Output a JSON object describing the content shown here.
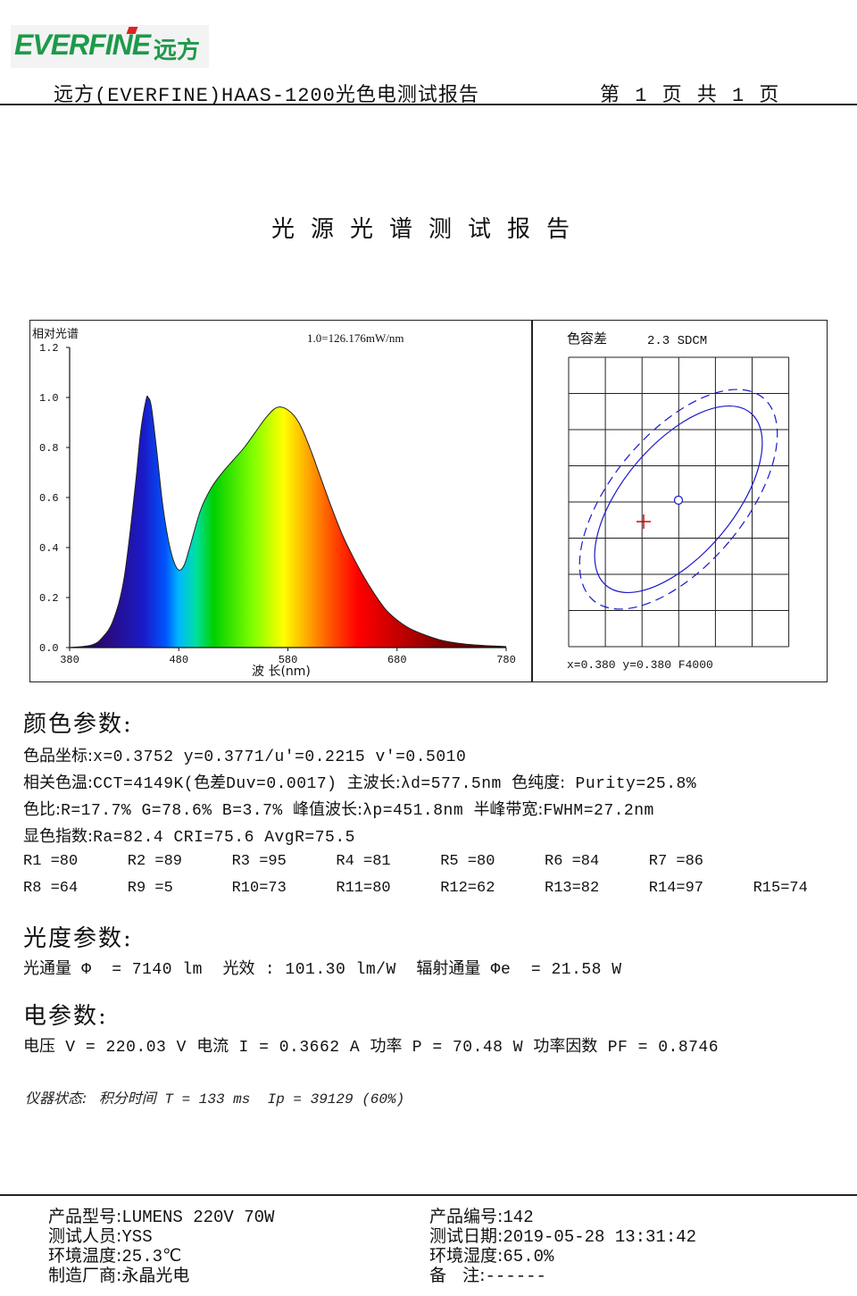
{
  "header": {
    "logo_en": "EVERFINE",
    "logo_cn": "远方",
    "report_title": "远方(EVERFINE)HAAS-1200光色电测试报告",
    "page_indicator": "第 1 页   共 1 页"
  },
  "main_title": "光源光谱测试报告",
  "spectrum": {
    "ylabel": "相对光谱",
    "scale_note": "1.0=126.176mW/nm",
    "xlabel": "波 长(nm)",
    "yticks": [
      "1.2",
      "1.0",
      "0.8",
      "0.6",
      "0.4",
      "0.2",
      "0.0"
    ],
    "xticks": [
      "380",
      "480",
      "580",
      "680",
      "780"
    ]
  },
  "chart_data": {
    "type": "area",
    "title": "",
    "xlabel": "波 长(nm)",
    "ylabel": "相对光谱",
    "xlim": [
      380,
      780
    ],
    "ylim": [
      0,
      1.2
    ],
    "x": [
      380,
      400,
      410,
      420,
      430,
      440,
      445,
      450,
      452,
      455,
      460,
      465,
      470,
      475,
      480,
      485,
      490,
      500,
      510,
      520,
      530,
      540,
      550,
      560,
      570,
      580,
      590,
      600,
      610,
      620,
      630,
      640,
      650,
      660,
      670,
      680,
      690,
      700,
      720,
      740,
      760,
      780
    ],
    "y": [
      0.0,
      0.01,
      0.04,
      0.11,
      0.28,
      0.64,
      0.86,
      0.99,
      1.0,
      0.96,
      0.78,
      0.58,
      0.44,
      0.35,
      0.31,
      0.33,
      0.4,
      0.55,
      0.64,
      0.7,
      0.75,
      0.8,
      0.86,
      0.92,
      0.96,
      0.95,
      0.9,
      0.8,
      0.68,
      0.56,
      0.45,
      0.36,
      0.28,
      0.21,
      0.15,
      0.11,
      0.08,
      0.06,
      0.03,
      0.015,
      0.008,
      0.004
    ]
  },
  "color_tolerance": {
    "label": "色容差",
    "value": "2.3 SDCM",
    "coords": "x=0.380 y=0.380 F4000"
  },
  "color_params": {
    "heading": "颜色参数:",
    "line1_label": "色品坐标:",
    "line1_value": "x=0.3752  y=0.3771/u'=0.2215 v'=0.5010",
    "line2_label_a": "相关色温:",
    "line2_value_a": "CCT=4149K(",
    "line2_label_b": "色差",
    "line2_value_b": "Duv=0.0017) ",
    "line2_label_c": "主波长:",
    "line2_value_c": "λd=577.5nm ",
    "line2_label_d": "色纯度:",
    "line2_value_d": " Purity=25.8%",
    "line3_label_a": "色比:",
    "line3_value_a": "R=17.7% G=78.6% B=3.7%  ",
    "line3_label_b": "峰值波长:",
    "line3_value_b": "λp=451.8nm  ",
    "line3_label_c": "半峰带宽:",
    "line3_value_c": "FWHM=27.2nm",
    "line4_label": "显色指数:",
    "line4_value": "Ra=82.4   CRI=75.6   AvgR=75.5",
    "r_values": [
      "R1 =80",
      "R2 =89",
      "R3 =95",
      "R4 =81",
      "R5 =80",
      "R6 =84",
      "R7 =86",
      "R8 =64",
      "R9 =5",
      "R10=73",
      "R11=80",
      "R12=62",
      "R13=82",
      "R14=97",
      "R15=74"
    ]
  },
  "photo_params": {
    "heading": "光度参数:",
    "flux_label": "光通量",
    "flux_value": " Φ  = 7140 lm  ",
    "eff_label": "光效",
    "eff_value": " : 101.30 lm/W  ",
    "rad_label": "辐射通量",
    "rad_value": " Φe  = 21.58 W"
  },
  "elec_params": {
    "heading": "电参数:",
    "v_label": "电压",
    "v_value": " V = 220.03 V ",
    "i_label": "电流",
    "i_value": " I = 0.3662 A ",
    "p_label": "功率",
    "p_value": " P = 70.48 W ",
    "pf_label": "功率因数",
    "pf_value": " PF = 0.8746"
  },
  "instrument": {
    "label": "仪器状态:",
    "int_label": "积分时间",
    "int_value": " T = 133 ms  Ip = 39129 (60%)"
  },
  "footer": {
    "model_label": "产品型号:",
    "model_value": "LUMENS 220V 70W",
    "tester_label": "测试人员:",
    "tester_value": "YSS",
    "temp_label": "环境温度:",
    "temp_value": "25.3℃",
    "maker_label": "制造厂商:",
    "maker_value": "永晶光电",
    "sn_label": "产品编号:",
    "sn_value": "142",
    "date_label": "测试日期:",
    "date_value": "2019-05-28 13:31:42",
    "hum_label": "环境湿度:",
    "hum_value": "65.0%",
    "note_label": "备   注:",
    "note_value": "------"
  }
}
